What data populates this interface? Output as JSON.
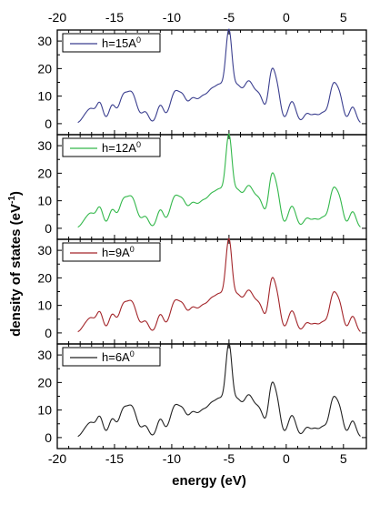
{
  "chart_data": {
    "type": "line",
    "xlabel": "energy (eV)",
    "ylabel": "density of states (eV",
    "ylabel_sup": "-1",
    "ylabel_close": ")",
    "xlim": [
      -20,
      7
    ],
    "ylim": [
      -4,
      34
    ],
    "x_ticks": [
      -20,
      -15,
      -10,
      -5,
      0,
      5
    ],
    "y_ticks": [
      0,
      10,
      20,
      30
    ],
    "peaks": [
      {
        "x": -17.5,
        "h": 3.0,
        "w": 0.35
      },
      {
        "x": -17.0,
        "h": 4.0,
        "w": 0.3
      },
      {
        "x": -16.3,
        "h": 7.5,
        "w": 0.3
      },
      {
        "x": -15.2,
        "h": 6.5,
        "w": 0.3
      },
      {
        "x": -14.3,
        "h": 8.0,
        "w": 0.35
      },
      {
        "x": -13.5,
        "h": 11.0,
        "w": 0.45
      },
      {
        "x": -12.3,
        "h": 4.0,
        "w": 0.3
      },
      {
        "x": -11.0,
        "h": 6.5,
        "w": 0.3
      },
      {
        "x": -9.7,
        "h": 11.5,
        "w": 0.45
      },
      {
        "x": -9.0,
        "h": 6.0,
        "w": 0.3
      },
      {
        "x": -8.2,
        "h": 8.5,
        "w": 0.4
      },
      {
        "x": -7.3,
        "h": 8.5,
        "w": 0.4
      },
      {
        "x": -6.6,
        "h": 7.0,
        "w": 0.35
      },
      {
        "x": -5.8,
        "h": 13.5,
        "w": 0.5
      },
      {
        "x": -5.0,
        "h": 29.0,
        "w": 0.28
      },
      {
        "x": -4.3,
        "h": 11.0,
        "w": 0.35
      },
      {
        "x": -3.3,
        "h": 15.0,
        "w": 0.5
      },
      {
        "x": -2.3,
        "h": 8.5,
        "w": 0.4
      },
      {
        "x": -1.3,
        "h": 16.0,
        "w": 0.28
      },
      {
        "x": -0.8,
        "h": 12.0,
        "w": 0.3
      },
      {
        "x": 0.5,
        "h": 8.0,
        "w": 0.35
      },
      {
        "x": 1.8,
        "h": 3.5,
        "w": 0.3
      },
      {
        "x": 2.5,
        "h": 3.0,
        "w": 0.3
      },
      {
        "x": 3.2,
        "h": 3.5,
        "w": 0.3
      },
      {
        "x": 4.1,
        "h": 13.5,
        "w": 0.35
      },
      {
        "x": 4.7,
        "h": 8.0,
        "w": 0.3
      },
      {
        "x": 5.8,
        "h": 6.0,
        "w": 0.3
      }
    ],
    "series": [
      {
        "name": "h=15A",
        "sup": "0",
        "color": "#3b3f8f"
      },
      {
        "name": "h=12A",
        "sup": "0",
        "color": "#33b84b"
      },
      {
        "name": "h=9A",
        "sup": "0",
        "color": "#a3252a"
      },
      {
        "name": "h=6A",
        "sup": "0",
        "color": "#222222"
      }
    ]
  }
}
